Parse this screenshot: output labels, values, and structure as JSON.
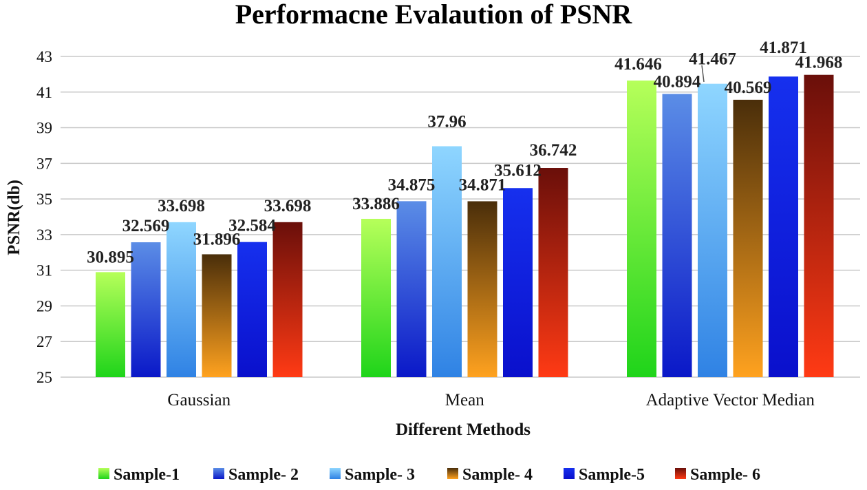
{
  "chart_data": {
    "type": "bar",
    "title": "Performacne Evalaution of PSNR",
    "xlabel": "Different Methods",
    "ylabel": "PSNR(db)",
    "ylim": [
      25,
      43
    ],
    "yticks": [
      25,
      27,
      29,
      31,
      33,
      35,
      37,
      39,
      41,
      43
    ],
    "grid": true,
    "legend_position": "bottom",
    "categories": [
      "Gaussian",
      "Mean",
      "Adaptive Vector Median"
    ],
    "series": [
      {
        "name": "Sample-1",
        "values": [
          30.895,
          33.886,
          41.646
        ],
        "labels": [
          "30.895",
          "33.886",
          "41.646"
        ],
        "colors": [
          "#b6ff5a",
          "#1fd41a"
        ]
      },
      {
        "name": "Sample- 2",
        "values": [
          32.569,
          34.875,
          40.894
        ],
        "labels": [
          "32.569",
          "34.875",
          "40.894"
        ],
        "colors": [
          "#5b8de6",
          "#0a18c8"
        ]
      },
      {
        "name": "Sample- 3",
        "values": [
          33.698,
          37.96,
          41.467
        ],
        "labels": [
          "33.698",
          "37.96",
          "41.467"
        ],
        "colors": [
          "#8fd6ff",
          "#2f82e4"
        ]
      },
      {
        "name": "Sample- 4",
        "values": [
          31.896,
          34.871,
          40.569
        ],
        "labels": [
          "31.896",
          "34.871",
          "40.569"
        ],
        "colors": [
          "#4a2e0a",
          "#ffa21f"
        ]
      },
      {
        "name": "Sample-5",
        "values": [
          32.584,
          35.612,
          41.871
        ],
        "labels": [
          "32.584",
          "35.612",
          "41.871"
        ],
        "colors": [
          "#1630ee",
          "#0a10cc"
        ]
      },
      {
        "name": "Sample- 6",
        "values": [
          33.698,
          36.742,
          41.968
        ],
        "labels": [
          "33.698",
          "36.742",
          "41.968"
        ],
        "colors": [
          "#6a0f0a",
          "#ff3a14"
        ]
      }
    ]
  }
}
